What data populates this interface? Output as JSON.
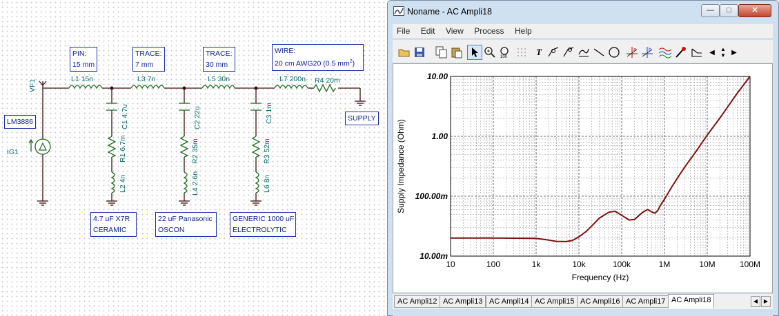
{
  "schematic": {
    "probe_label": "VF1",
    "source_name": "IG1",
    "chip_label": "LM3886",
    "notes": {
      "pin": [
        "PIN:",
        "15 mm"
      ],
      "trace1": [
        "TRACE:",
        "7 mm"
      ],
      "trace2": [
        "TRACE:",
        "30 mm"
      ],
      "wire": [
        "WIRE:",
        "20 cm AWG20 (0.5 mm",
        "2",
        ")"
      ],
      "supply": "SUPPLY",
      "cap1": [
        "4.7 uF X7R",
        "CERAMIC"
      ],
      "cap2": [
        "22 uF Panasonic",
        "OSCON"
      ],
      "cap3": [
        "GENERIC 1000 uF",
        "ELECTROLYTIC"
      ]
    },
    "components": {
      "L1": "L1 15n",
      "L3": "L3 7n",
      "L5": "L5 30n",
      "L7": "L7 200n",
      "R4": "R4 20m",
      "C1": "C1 4.7u",
      "R1": "R1 6.7m",
      "L2": "L2 4n",
      "C2": "C2 22u",
      "R2": "R2 35m",
      "L4": "L4 2.6n",
      "C3": "C3 1m",
      "R3": "R3 52m",
      "L6": "L6 8n"
    }
  },
  "window": {
    "title": "Noname - AC Ampli18",
    "buttons": {
      "minimize": "—",
      "maximize": "□",
      "close": "✕"
    },
    "menu": [
      "File",
      "Edit",
      "View",
      "Process",
      "Help"
    ],
    "toolbar_icons": [
      "open-icon",
      "save-icon",
      "copy-icon",
      "paste-icon",
      "pointer-icon",
      "zoom-in-icon",
      "zoom-100-icon",
      "grid-icon",
      "text-icon",
      "cursor-a-icon",
      "cursor-b-icon",
      "cursor-c-icon",
      "line-icon",
      "circle-icon",
      "marker-a-icon",
      "marker-b-icon",
      "curves-icon",
      "probe-icon",
      "slope-icon",
      "scroll-left-icon",
      "scroll-updown-icon",
      "scroll-right-icon"
    ],
    "tabs": [
      "AC Ampli12",
      "AC Ampli13",
      "AC Ampli14",
      "AC Ampli15",
      "AC Ampli16",
      "AC Ampli17",
      "AC Ampli18"
    ],
    "active_tab": "AC Ampli18"
  },
  "chart_data": {
    "type": "line",
    "xlabel": "Frequency (Hz)",
    "ylabel": "Supply Impedance (Ohm)",
    "x_scale": "log",
    "y_scale": "log",
    "xlim": [
      10,
      100000000
    ],
    "ylim": [
      0.01,
      10
    ],
    "x_ticks": [
      "10",
      "100",
      "1k",
      "10k",
      "100k",
      "1M",
      "10M",
      "100M"
    ],
    "y_ticks": [
      "10.00m",
      "100.00m",
      "1.00",
      "10.00"
    ],
    "grid": true,
    "line_color": "#7a0f0f",
    "series": [
      {
        "x": [
          10,
          100,
          1000,
          2000,
          3000,
          5000,
          7000,
          10000,
          15000,
          20000,
          30000,
          50000,
          70000,
          100000,
          150000,
          200000,
          300000,
          400000,
          500000,
          600000,
          700000,
          800000,
          1000000,
          1500000,
          2000000,
          3000000,
          5000000,
          10000000,
          20000000,
          50000000,
          100000000
        ],
        "values": [
          0.02,
          0.02,
          0.0198,
          0.0185,
          0.0176,
          0.0175,
          0.0182,
          0.021,
          0.026,
          0.032,
          0.043,
          0.054,
          0.056,
          0.048,
          0.04,
          0.041,
          0.053,
          0.06,
          0.055,
          0.052,
          0.058,
          0.07,
          0.089,
          0.145,
          0.2,
          0.31,
          0.51,
          1.05,
          2.05,
          5.2,
          10.0
        ]
      }
    ]
  }
}
